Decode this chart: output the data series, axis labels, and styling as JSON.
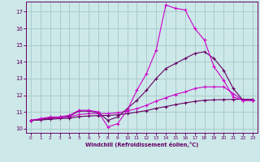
{
  "bg_color": "#cce8e8",
  "grid_color": "#aacccc",
  "line_color_magenta": "#cc00cc",
  "line_color_dark": "#660066",
  "xlabel": "Windchill (Refroidissement éolien,°C)",
  "xlim": [
    -0.5,
    23.5
  ],
  "ylim": [
    9.75,
    17.6
  ],
  "yticks": [
    10,
    11,
    12,
    13,
    14,
    15,
    16,
    17
  ],
  "xticks": [
    0,
    1,
    2,
    3,
    4,
    5,
    6,
    7,
    8,
    9,
    10,
    11,
    12,
    13,
    14,
    15,
    16,
    17,
    18,
    19,
    20,
    21,
    22,
    23
  ],
  "line_a_x": [
    0,
    1,
    2,
    3,
    4,
    5,
    6,
    7,
    8,
    9,
    10,
    11,
    12,
    13,
    14,
    15,
    16,
    17,
    18,
    19,
    20,
    21,
    22,
    23
  ],
  "line_a_y": [
    10.5,
    10.6,
    10.7,
    10.7,
    10.8,
    11.1,
    11.1,
    11.0,
    10.1,
    10.3,
    11.1,
    12.3,
    13.3,
    14.7,
    17.4,
    17.2,
    17.1,
    16.0,
    15.3,
    13.7,
    12.9,
    11.9,
    11.7,
    11.7
  ],
  "line_b_x": [
    0,
    1,
    2,
    3,
    4,
    5,
    6,
    7,
    8,
    9,
    10,
    11,
    12,
    13,
    14,
    15,
    16,
    17,
    18,
    19,
    20,
    21,
    22,
    23
  ],
  "line_b_y": [
    10.5,
    10.55,
    10.65,
    10.7,
    10.75,
    11.05,
    11.05,
    10.95,
    10.5,
    10.7,
    11.2,
    11.7,
    12.3,
    13.0,
    13.6,
    13.9,
    14.2,
    14.5,
    14.6,
    14.2,
    13.5,
    12.4,
    11.7,
    11.7
  ],
  "line_c_x": [
    0,
    1,
    2,
    3,
    4,
    5,
    6,
    7,
    8,
    9,
    10,
    11,
    12,
    13,
    14,
    15,
    16,
    17,
    18,
    19,
    20,
    21,
    22,
    23
  ],
  "line_c_y": [
    10.5,
    10.55,
    10.6,
    10.65,
    10.7,
    10.85,
    10.9,
    10.9,
    10.9,
    10.95,
    11.05,
    11.2,
    11.4,
    11.65,
    11.85,
    12.05,
    12.2,
    12.4,
    12.5,
    12.5,
    12.5,
    12.1,
    11.7,
    11.7
  ],
  "line_d_x": [
    0,
    1,
    2,
    3,
    4,
    5,
    6,
    7,
    8,
    9,
    10,
    11,
    12,
    13,
    14,
    15,
    16,
    17,
    18,
    19,
    20,
    21,
    22,
    23
  ],
  "line_d_y": [
    10.5,
    10.52,
    10.56,
    10.6,
    10.63,
    10.72,
    10.76,
    10.78,
    10.79,
    10.83,
    10.9,
    10.99,
    11.08,
    11.22,
    11.32,
    11.44,
    11.54,
    11.63,
    11.7,
    11.72,
    11.74,
    11.75,
    11.76,
    11.76
  ]
}
